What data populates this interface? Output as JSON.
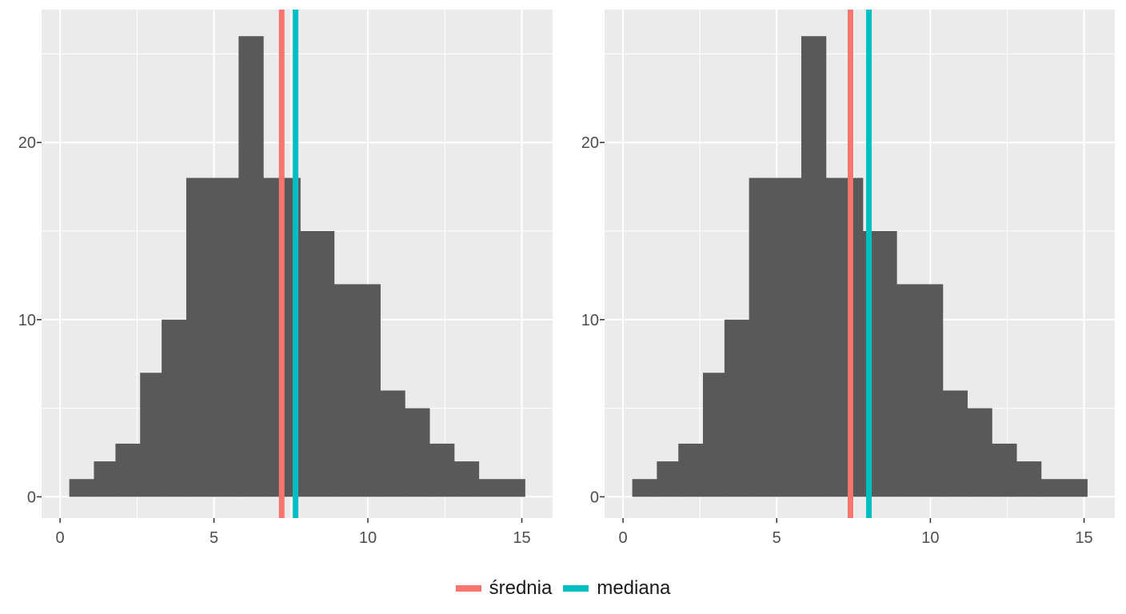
{
  "chart_data": [
    {
      "type": "histogram",
      "bins": [
        [
          0.3,
          1.1
        ],
        [
          1.1,
          1.8
        ],
        [
          1.8,
          2.6
        ],
        [
          2.6,
          3.3
        ],
        [
          3.3,
          4.1
        ],
        [
          4.1,
          5.0
        ],
        [
          5.0,
          5.8
        ],
        [
          5.8,
          6.6
        ],
        [
          6.6,
          7.8
        ],
        [
          7.8,
          8.9
        ],
        [
          8.9,
          10.4
        ],
        [
          10.4,
          11.2
        ],
        [
          11.2,
          12.0
        ],
        [
          12.0,
          12.8
        ],
        [
          12.8,
          13.6
        ],
        [
          13.6,
          15.1
        ]
      ],
      "counts": [
        1,
        2,
        3,
        7,
        10,
        18,
        18,
        26,
        18,
        15,
        12,
        6,
        5,
        3,
        2,
        1
      ],
      "xlim": [
        -0.6,
        16.0
      ],
      "ylim": [
        -1.2,
        27.5
      ],
      "x_ticks": [
        0,
        5,
        10,
        15
      ],
      "y_ticks": [
        0,
        10,
        20
      ],
      "lines": {
        "średnia": 7.2,
        "mediana": 7.65
      },
      "grid": true
    },
    {
      "type": "histogram",
      "bins": [
        [
          0.3,
          1.1
        ],
        [
          1.1,
          1.8
        ],
        [
          1.8,
          2.6
        ],
        [
          2.6,
          3.3
        ],
        [
          3.3,
          4.1
        ],
        [
          4.1,
          5.0
        ],
        [
          5.0,
          5.8
        ],
        [
          5.8,
          6.6
        ],
        [
          6.6,
          7.8
        ],
        [
          7.8,
          8.9
        ],
        [
          8.9,
          10.4
        ],
        [
          10.4,
          11.2
        ],
        [
          11.2,
          12.0
        ],
        [
          12.0,
          12.8
        ],
        [
          12.8,
          13.6
        ],
        [
          13.6,
          15.1
        ]
      ],
      "counts": [
        1,
        2,
        3,
        7,
        10,
        18,
        18,
        26,
        18,
        15,
        12,
        6,
        5,
        3,
        2,
        1
      ],
      "xlim": [
        -0.6,
        16.0
      ],
      "ylim": [
        -1.2,
        27.5
      ],
      "x_ticks": [
        0,
        5,
        10,
        15
      ],
      "y_ticks": [
        0,
        10,
        20
      ],
      "lines": {
        "średnia": 7.4,
        "mediana": 8.0
      },
      "grid": true
    }
  ],
  "legend": {
    "position": "bottom",
    "items": [
      {
        "key": "średnia",
        "label": "średnia",
        "color": "#F8766D"
      },
      {
        "key": "mediana",
        "label": "mediana",
        "color": "#00BFC4"
      }
    ]
  },
  "colors": {
    "panel_background": "#EBEBEB",
    "grid": "#FFFFFF",
    "bar": "#595959",
    "tick": "#333333"
  }
}
